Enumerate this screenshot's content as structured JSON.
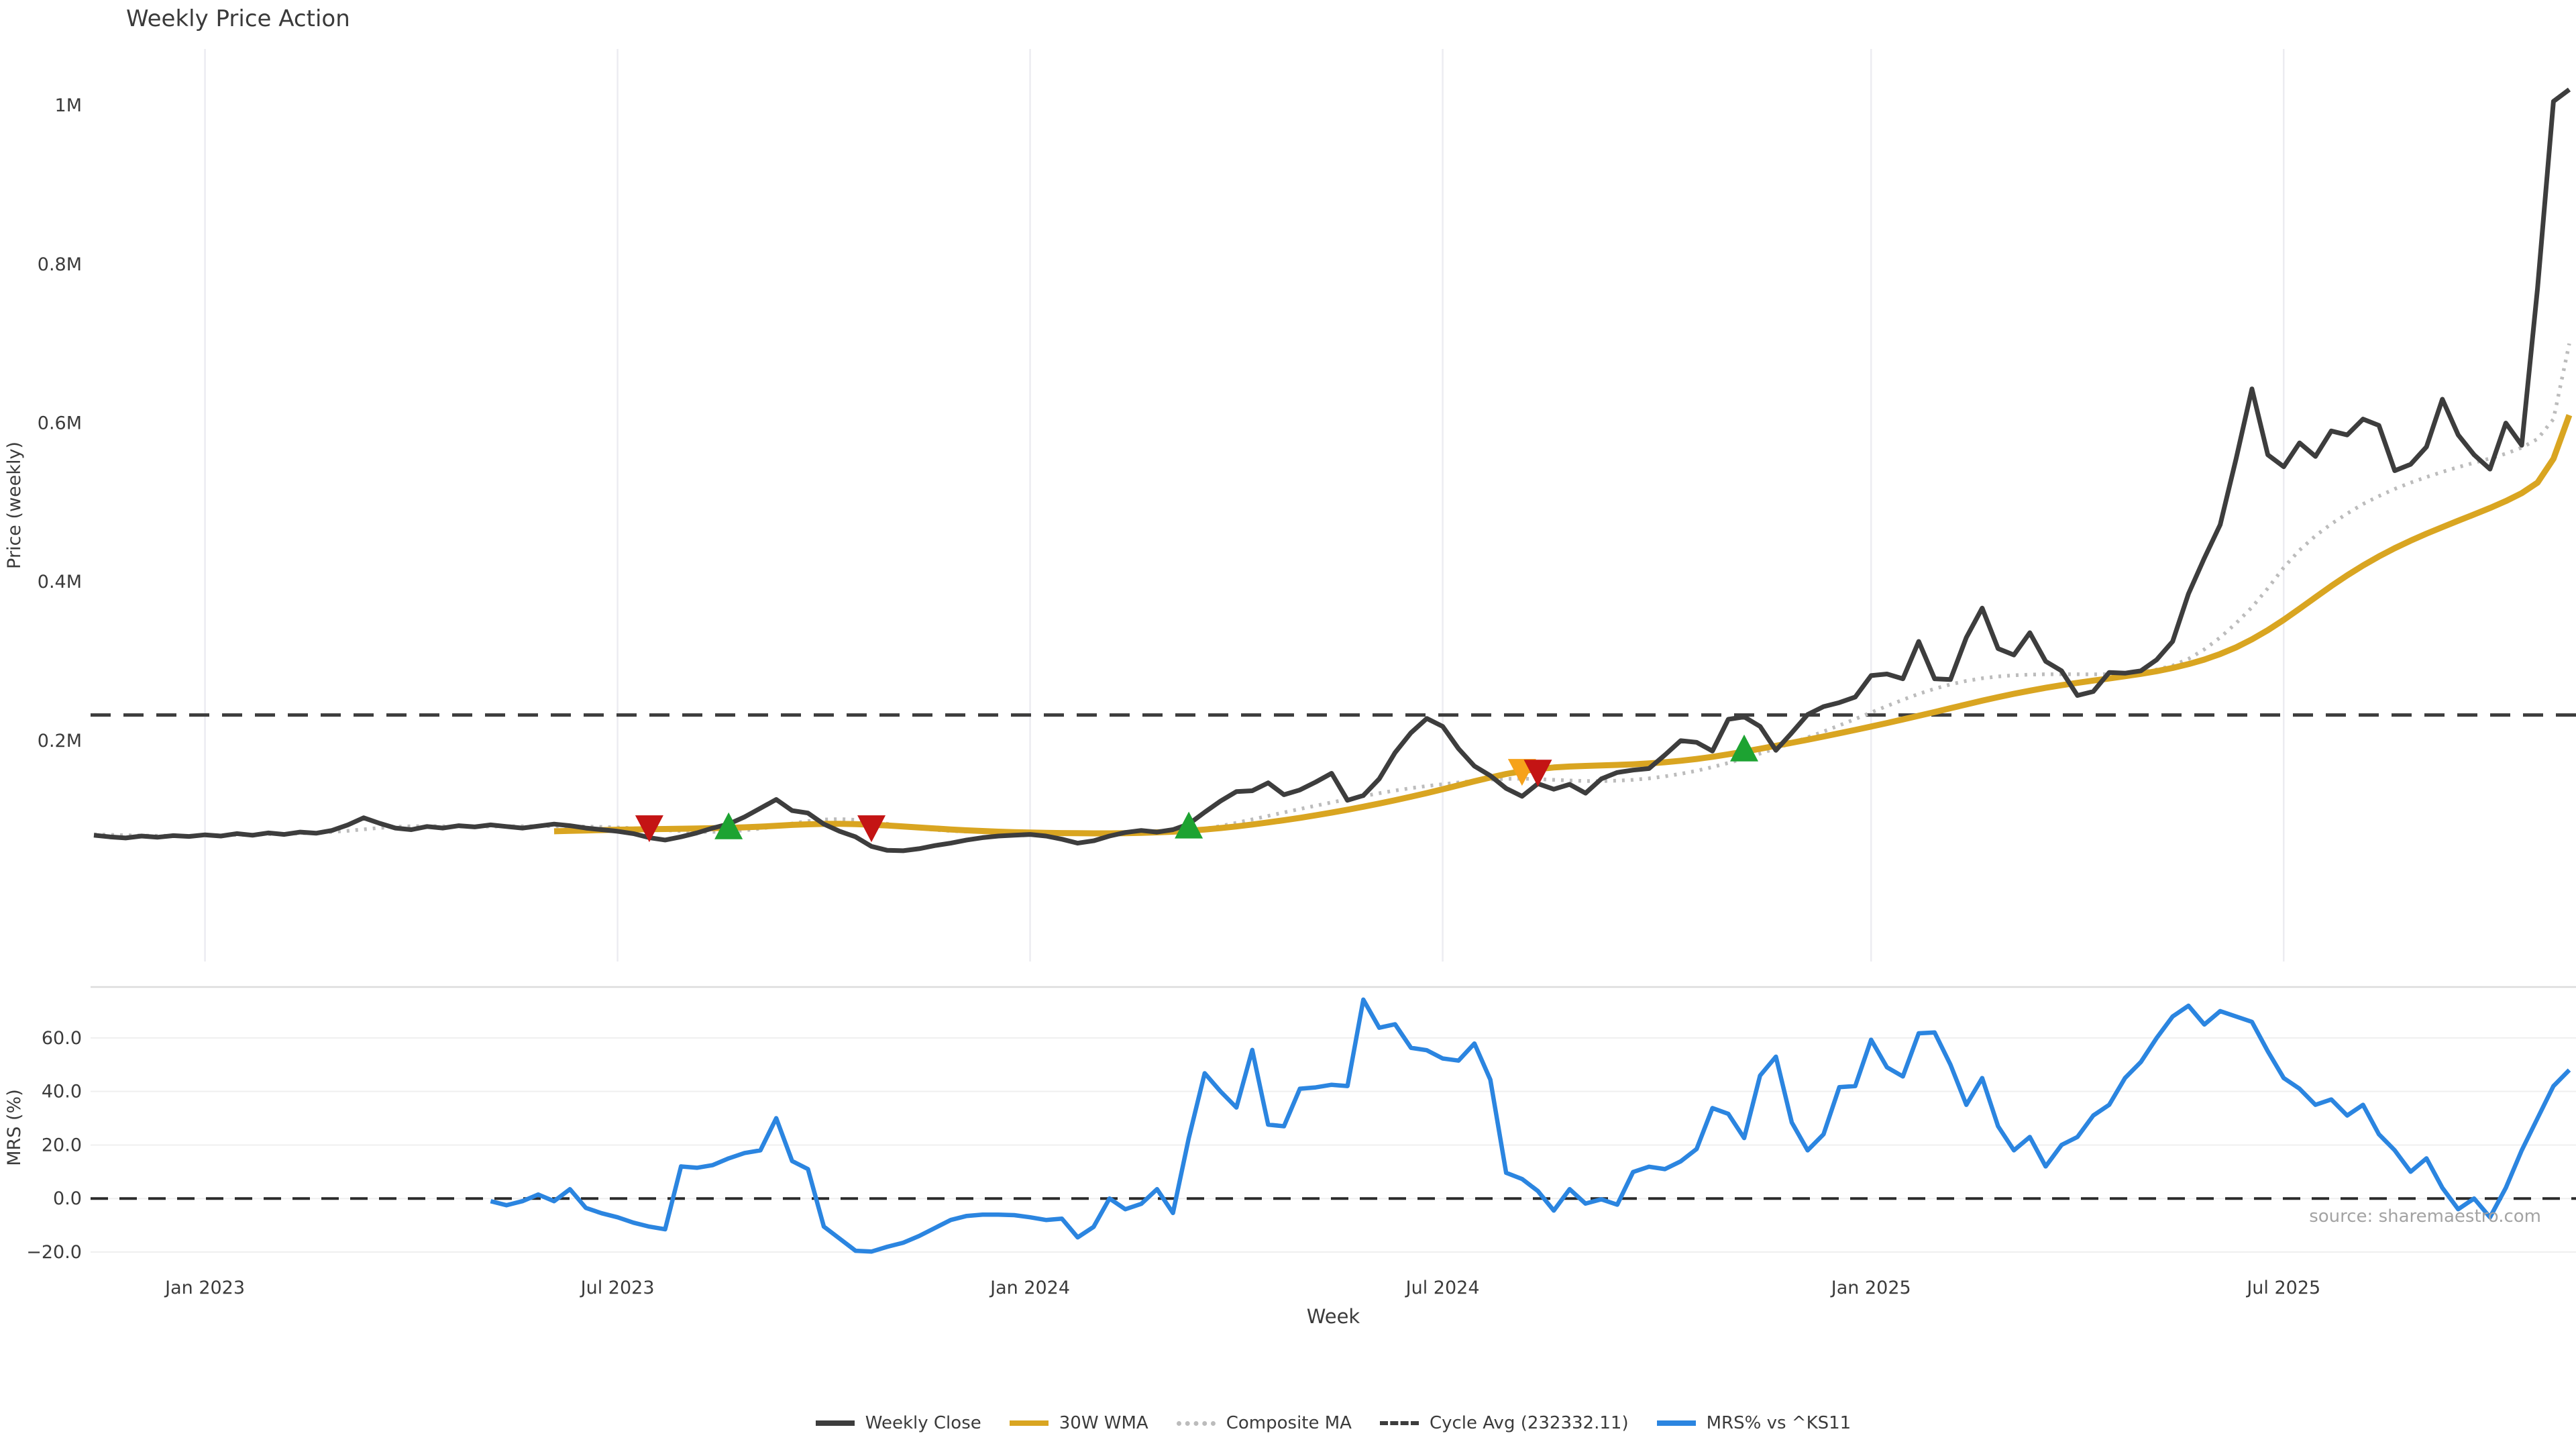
{
  "title": "Weekly Price Action",
  "source_note": "source: sharemaestro.com",
  "colors": {
    "close": "#3d3d3d",
    "wma": "#d9a521",
    "composite": "#bcbcbc",
    "cycle_avg": "#3d3d3d",
    "mrs": "#2b85e0",
    "buy_marker": "#1da332",
    "sell_marker": "#c41414",
    "warn_marker": "#f6a21b",
    "grid": "#ececf1",
    "mrs_grid": "#efefef",
    "panel_spine": "#dcdcdc",
    "text": "#3b3b3b",
    "source_text": "#a3a3a3"
  },
  "legend": [
    {
      "label": "Weekly Close",
      "color": "#3d3d3d",
      "style": "solid"
    },
    {
      "label": "30W WMA",
      "color": "#d9a521",
      "style": "solid"
    },
    {
      "label": "Composite MA",
      "color": "#bcbcbc",
      "style": "dotted"
    },
    {
      "label": "Cycle Avg (232332.11)",
      "color": "#3d3d3d",
      "style": "dashed"
    },
    {
      "label": "MRS% vs ^KS11",
      "color": "#2b85e0",
      "style": "solid"
    }
  ],
  "chart_data": [
    {
      "type": "line",
      "panel": "price",
      "title": "Weekly Price Action",
      "xlabel": "Week",
      "ylabel": "Price (weekly)",
      "ylim": [
        -78000,
        1071000
      ],
      "grid": "vertical-only",
      "cycle_avg_value": 232332.11,
      "x_ticks": [
        {
          "week": 7,
          "label": "Jan 2023"
        },
        {
          "week": 33,
          "label": "Jul 2023"
        },
        {
          "week": 59,
          "label": "Jan 2024"
        },
        {
          "week": 85,
          "label": "Jul 2024"
        },
        {
          "week": 112,
          "label": "Jan 2025"
        },
        {
          "week": 138,
          "label": "Jul 2025"
        }
      ],
      "y_ticks": [
        {
          "value": 200000,
          "label": "0.2M"
        },
        {
          "value": 400000,
          "label": "0.4M"
        },
        {
          "value": 600000,
          "label": "0.6M"
        },
        {
          "value": 800000,
          "label": "0.8M"
        },
        {
          "value": 1000000,
          "label": "1M"
        }
      ],
      "series": [
        {
          "name": "Weekly Close",
          "color": "#3d3d3d",
          "style": "solid",
          "start_week": 0,
          "values": [
            81000,
            79000,
            77500,
            80000,
            78500,
            80500,
            79500,
            81500,
            80000,
            83000,
            81000,
            84000,
            82000,
            85000,
            83500,
            87000,
            94000,
            103000,
            96000,
            90000,
            88000,
            92000,
            90000,
            93000,
            91500,
            94000,
            92000,
            90000,
            92500,
            95000,
            93000,
            90000,
            88000,
            86000,
            83000,
            78000,
            75000,
            79000,
            84000,
            90000,
            95000,
            104000,
            115000,
            126000,
            112000,
            109000,
            95000,
            86000,
            79000,
            67000,
            62000,
            61500,
            64000,
            68000,
            71000,
            75000,
            78000,
            80000,
            81000,
            82000,
            80000,
            76000,
            71000,
            74000,
            80000,
            84500,
            87000,
            85000,
            88000,
            95000,
            110000,
            124000,
            136000,
            137000,
            147000,
            132000,
            138000,
            148000,
            159000,
            125000,
            131000,
            152000,
            185000,
            210000,
            228000,
            218000,
            190000,
            168000,
            156000,
            140000,
            130000,
            146000,
            139000,
            145000,
            134000,
            152000,
            160000,
            163000,
            165000,
            182000,
            200000,
            198000,
            187000,
            227000,
            230000,
            218000,
            188000,
            210000,
            233000,
            243000,
            248000,
            255000,
            282000,
            284000,
            278000,
            325000,
            278000,
            277000,
            330000,
            367000,
            316000,
            308000,
            336000,
            300000,
            288000,
            257000,
            262000,
            286000,
            285000,
            288000,
            302000,
            325000,
            385000,
            430000,
            472000,
            555000,
            643000,
            560000,
            545000,
            575000,
            558000,
            590000,
            585000,
            605000,
            597000,
            540000,
            548000,
            570000,
            630000,
            585000,
            560000,
            542000,
            600000,
            572000,
            770000,
            1005000,
            1020000
          ]
        },
        {
          "name": "30W WMA",
          "color": "#d9a521",
          "style": "solid",
          "start_week": 29,
          "values": [
            86000,
            86500,
            87000,
            87500,
            88000,
            88300,
            88600,
            88900,
            89200,
            89500,
            89900,
            90400,
            91000,
            91800,
            92800,
            94000,
            94800,
            95300,
            95400,
            95000,
            94300,
            93300,
            92100,
            90800,
            89500,
            88300,
            87200,
            86300,
            85500,
            84900,
            84400,
            84000,
            83700,
            83500,
            83400,
            83400,
            83600,
            84000,
            84600,
            85500,
            86700,
            88200,
            90000,
            92100,
            94500,
            97100,
            99900,
            102900,
            106100,
            109500,
            113100,
            116900,
            120900,
            125100,
            129500,
            134100,
            138900,
            143900,
            148900,
            153700,
            158100,
            161700,
            164400,
            166300,
            167500,
            168300,
            168900,
            169500,
            170300,
            171400,
            172900,
            174800,
            177100,
            179800,
            182900,
            186300,
            189900,
            193600,
            197400,
            201300,
            205300,
            209400,
            213600,
            217900,
            222300,
            226800,
            231400,
            236100,
            240900,
            245700,
            250400,
            254900,
            259100,
            263000,
            266600,
            269900,
            272900,
            275700,
            278400,
            281200,
            284200,
            287600,
            291600,
            296400,
            302200,
            309200,
            317600,
            327600,
            339200,
            352200,
            366200,
            380600,
            394800,
            408200,
            420600,
            432000,
            442400,
            451900,
            460700,
            469000,
            477000,
            484900,
            493000,
            501700,
            511700,
            525000,
            555000,
            610000
          ]
        },
        {
          "name": "Composite MA",
          "color": "#bcbcbc",
          "style": "dotted",
          "start_week": 0,
          "values": [
            82000,
            81500,
            81000,
            80600,
            80300,
            80200,
            80300,
            80600,
            81000,
            81400,
            81800,
            82300,
            82800,
            83400,
            84200,
            85200,
            86600,
            88400,
            90200,
            91600,
            92300,
            92400,
            92200,
            92000,
            91900,
            92000,
            92200,
            92300,
            92400,
            92400,
            92300,
            92000,
            91500,
            90800,
            89800,
            88600,
            87400,
            86200,
            85400,
            85200,
            85800,
            87200,
            89400,
            92400,
            95800,
            98800,
            100800,
            101400,
            100400,
            98200,
            95400,
            92400,
            89800,
            87800,
            86400,
            85600,
            85200,
            85000,
            84800,
            84600,
            84200,
            83600,
            83000,
            82600,
            82400,
            82500,
            82900,
            83600,
            84800,
            86600,
            89200,
            92600,
            96600,
            100900,
            105300,
            109700,
            114000,
            118200,
            122300,
            126300,
            130200,
            133900,
            137300,
            140300,
            142900,
            145200,
            147400,
            149400,
            151000,
            152000,
            152200,
            151700,
            150800,
            149900,
            149300,
            149200,
            149700,
            150800,
            152600,
            155100,
            158300,
            162200,
            166800,
            172000,
            177700,
            183800,
            190300,
            197100,
            204200,
            211600,
            219300,
            227300,
            235500,
            243700,
            251600,
            258900,
            265400,
            270900,
            275300,
            278600,
            280900,
            282400,
            283300,
            283700,
            283800,
            283700,
            283600,
            283800,
            284600,
            286400,
            289600,
            294600,
            303000,
            315000,
            330000,
            348000,
            368000,
            392000,
            418000,
            440000,
            458000,
            473000,
            486000,
            498000,
            508000,
            517000,
            525000,
            532000,
            538500,
            544500,
            550000,
            555500,
            561500,
            569000,
            580000,
            605000,
            700000
          ]
        }
      ],
      "markers": [
        {
          "week": 35,
          "value": 90000,
          "shape": "triangle-down",
          "color": "#c41414",
          "meaning": "sell"
        },
        {
          "week": 40,
          "value": 92000,
          "shape": "triangle-up",
          "color": "#1da332",
          "meaning": "buy"
        },
        {
          "week": 49,
          "value": 90000,
          "shape": "triangle-down",
          "color": "#c41414",
          "meaning": "sell"
        },
        {
          "week": 69,
          "value": 93000,
          "shape": "triangle-up",
          "color": "#1da332",
          "meaning": "buy"
        },
        {
          "week": 90,
          "value": 161000,
          "shape": "triangle-down",
          "color": "#f6a21b",
          "meaning": "warning"
        },
        {
          "week": 91,
          "value": 160000,
          "shape": "triangle-down",
          "color": "#c41414",
          "meaning": "sell"
        },
        {
          "week": 104,
          "value": 190000,
          "shape": "triangle-up",
          "color": "#1da332",
          "meaning": "buy"
        }
      ]
    },
    {
      "type": "line",
      "panel": "mrs",
      "ylabel": "MRS (%)",
      "ylim": [
        -26,
        79
      ],
      "grid": "horizontal-only",
      "zero_line": 0,
      "y_ticks": [
        {
          "value": 60,
          "label": "60.0"
        },
        {
          "value": 40,
          "label": "40.0"
        },
        {
          "value": 20,
          "label": "20.0"
        },
        {
          "value": 0,
          "label": "0.0"
        },
        {
          "value": -20,
          "label": "−20.0"
        }
      ],
      "series": [
        {
          "name": "MRS% vs ^KS11",
          "color": "#2b85e0",
          "style": "solid",
          "start_week": 25,
          "values": [
            -1,
            -2.5,
            -1,
            1.5,
            -1,
            3.5,
            -3.5,
            -5.5,
            -7,
            -9,
            -10.5,
            -11.5,
            12,
            11.5,
            12.5,
            15,
            17,
            18,
            30,
            14,
            11,
            -10.5,
            -15,
            -19.5,
            -19.8,
            -18,
            -16.5,
            -14,
            -11,
            -8,
            -6.5,
            -6,
            -6,
            -6.2,
            -7,
            -8,
            -7.5,
            -14.5,
            -10.6,
            0,
            -4,
            -2,
            3.5,
            -5.4,
            22.6,
            46.8,
            40,
            34,
            55.5,
            27.6,
            27,
            41,
            41.5,
            42.5,
            42,
            74.3,
            63.8,
            65.1,
            56.3,
            55.4,
            52.3,
            51.5,
            57.9,
            44.4,
            9.6,
            7.3,
            2.8,
            -4.5,
            3.5,
            -1.9,
            -0.3,
            -2.3,
            9.9,
            11.9,
            11,
            13.9,
            18.5,
            33.8,
            31.6,
            22.6,
            45.9,
            53,
            28.4,
            18,
            24,
            41.6,
            42,
            59.3,
            49,
            45.6,
            61.7,
            62,
            50,
            35,
            45,
            27,
            18,
            23,
            12,
            20,
            23,
            31,
            35,
            45,
            51,
            60,
            68,
            72,
            65,
            70,
            68,
            66,
            55,
            45,
            41,
            35,
            37,
            31,
            35,
            24,
            18,
            10,
            15,
            4,
            -4,
            0,
            -7,
            4,
            18,
            30,
            42,
            48
          ]
        }
      ]
    }
  ],
  "x_axis": {
    "label": "Week",
    "unit": "week index, 0 = first plotted week"
  }
}
